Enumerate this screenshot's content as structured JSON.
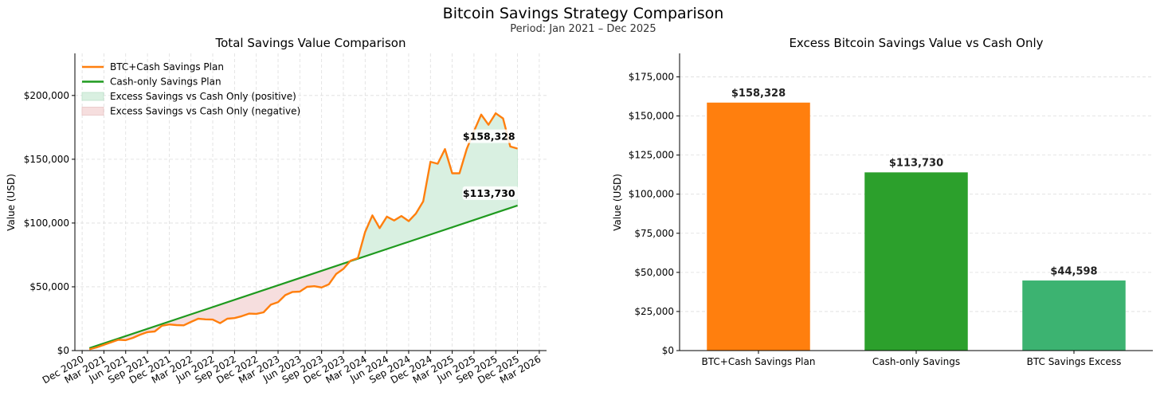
{
  "figure": {
    "title": "Bitcoin Savings Strategy Comparison",
    "subtitle": "Period: Jan 2021 – Dec 2025"
  },
  "colors": {
    "btc": "#ff7f0e",
    "cash": "#1f9a1f",
    "bar_btc": "#ff7f0e",
    "bar_cash": "#2ca02c",
    "bar_excess": "#3cb371",
    "fill_pos": "#d9f0e1",
    "fill_pos_edge": "#bfe3cb",
    "fill_neg": "#f6dede",
    "fill_neg_edge": "#e8c4c4",
    "grid": "#dddddd"
  },
  "chart_data": [
    {
      "type": "line",
      "title": "Total Savings Value Comparison",
      "xlabel": "",
      "ylabel": "Value (USD)",
      "xlim": [
        -2,
        63
      ],
      "ylim": [
        0,
        233000
      ],
      "grid": true,
      "legend_position": "top-left",
      "x_tick_labels": [
        "Dec 2020",
        "Mar 2021",
        "Jun 2021",
        "Sep 2021",
        "Dec 2021",
        "Mar 2022",
        "Jun 2022",
        "Sep 2022",
        "Dec 2022",
        "Mar 2023",
        "Jun 2023",
        "Sep 2023",
        "Dec 2023",
        "Mar 2024",
        "Jun 2024",
        "Sep 2024",
        "Dec 2024",
        "Mar 2025",
        "Jun 2025",
        "Sep 2025",
        "Dec 2025",
        "Mar 2026"
      ],
      "x_tick_months": [
        -1,
        2,
        5,
        8,
        11,
        14,
        17,
        20,
        23,
        26,
        29,
        32,
        35,
        38,
        41,
        44,
        47,
        50,
        53,
        56,
        59,
        62
      ],
      "y_ticks": [
        0,
        50000,
        100000,
        150000,
        200000
      ],
      "y_tick_labels": [
        "$0",
        "$50,000",
        "$100,000",
        "$150,000",
        "$200,000"
      ],
      "legend": [
        {
          "label": "BTC+Cash Savings Plan",
          "kind": "line",
          "color_key": "btc"
        },
        {
          "label": "Cash-only Savings Plan",
          "kind": "line",
          "color_key": "cash"
        },
        {
          "label": "Excess Savings vs Cash Only (positive)",
          "kind": "patch",
          "color_key": "fill_pos"
        },
        {
          "label": "Excess Savings vs Cash Only (negative)",
          "kind": "patch",
          "color_key": "fill_neg"
        }
      ],
      "series": [
        {
          "name": "BTC+Cash Savings Plan",
          "color_key": "btc",
          "x": [
            0,
            1,
            2,
            3,
            4,
            5,
            6,
            7,
            8,
            9,
            10,
            11,
            12,
            13,
            14,
            15,
            16,
            17,
            18,
            19,
            20,
            21,
            22,
            23,
            24,
            25,
            26,
            27,
            28,
            29,
            30,
            31,
            32,
            33,
            34,
            35,
            36,
            37,
            38,
            39,
            40,
            41,
            42,
            43,
            44,
            45,
            46,
            47,
            48,
            49,
            50,
            51,
            52,
            53,
            54,
            55,
            56,
            57,
            58,
            59
          ],
          "values": [
            1000,
            2500,
            4500,
            6500,
            8500,
            8200,
            10000,
            12500,
            14500,
            15000,
            19500,
            20500,
            20000,
            19800,
            22500,
            25000,
            24500,
            24300,
            21500,
            25000,
            25500,
            27000,
            29000,
            28800,
            30000,
            36000,
            38000,
            43500,
            46000,
            46200,
            50000,
            50500,
            49500,
            52000,
            60000,
            64000,
            70500,
            72500,
            93000,
            106000,
            96000,
            105000,
            102000,
            105500,
            101500,
            107500,
            117000,
            148000,
            146500,
            158000,
            139000,
            139000,
            158000,
            172000,
            185000,
            177000,
            186000,
            182000,
            160000,
            158328
          ],
          "end_label": "$158,328"
        },
        {
          "name": "Cash-only Savings Plan",
          "color_key": "cash",
          "x": [
            0,
            59
          ],
          "values": [
            1898,
            113730
          ],
          "end_label": "$113,730"
        }
      ]
    },
    {
      "type": "bar",
      "title": "Excess Bitcoin Savings Value vs Cash Only",
      "xlabel": "",
      "ylabel": "Value (USD)",
      "ylim": [
        0,
        190000
      ],
      "grid": true,
      "categories": [
        "BTC+Cash Savings Plan",
        "Cash-only Savings",
        "BTC Savings Excess"
      ],
      "values": [
        158328,
        113730,
        44598
      ],
      "value_labels": [
        "$158,328",
        "$113,730",
        "$44,598"
      ],
      "bar_color_keys": [
        "bar_btc",
        "bar_cash",
        "bar_excess"
      ],
      "y_ticks": [
        0,
        25000,
        50000,
        75000,
        100000,
        125000,
        150000,
        175000
      ],
      "y_tick_labels": [
        "$0",
        "$25,000",
        "$50,000",
        "$75,000",
        "$100,000",
        "$125,000",
        "$150,000",
        "$175,000"
      ]
    }
  ]
}
